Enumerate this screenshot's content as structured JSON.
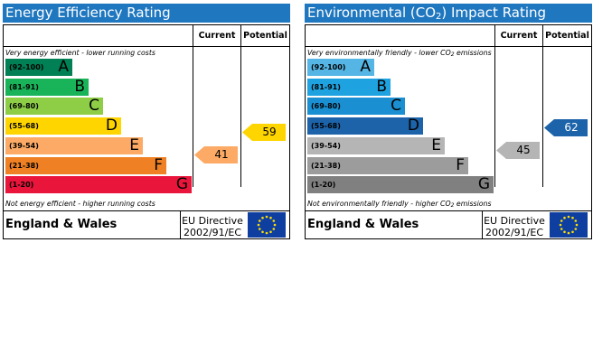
{
  "chart_data": [
    {
      "type": "bar",
      "title": "Energy Efficiency Rating",
      "columns": [
        "Current",
        "Potential"
      ],
      "top_note": "Very energy efficient - lower running costs",
      "bottom_note": "Not energy efficient - higher running costs",
      "bands": [
        {
          "range": "(92-100)",
          "letter": "A",
          "color": "#008054",
          "text_color": "#000000"
        },
        {
          "range": "(81-91)",
          "letter": "B",
          "color": "#19b459",
          "text_color": "#000000"
        },
        {
          "range": "(69-80)",
          "letter": "C",
          "color": "#8dce46",
          "text_color": "#000000"
        },
        {
          "range": "(55-68)",
          "letter": "D",
          "color": "#ffd500",
          "text_color": "#000000"
        },
        {
          "range": "(39-54)",
          "letter": "E",
          "color": "#fcaa65",
          "text_color": "#000000"
        },
        {
          "range": "(21-38)",
          "letter": "F",
          "color": "#ef8023",
          "text_color": "#000000"
        },
        {
          "range": "(1-20)",
          "letter": "G",
          "color": "#e9153b",
          "text_color": "#000000"
        }
      ],
      "current": {
        "value": 41,
        "band": "E",
        "color": "#fcaa65"
      },
      "potential": {
        "value": 59,
        "band": "D",
        "color": "#ffd500"
      },
      "footer": {
        "region": "England & Wales",
        "directive_line1": "EU Directive",
        "directive_line2": "2002/91/EC"
      }
    },
    {
      "type": "bar",
      "title_pre": "Environmental (CO",
      "title_sub": "2",
      "title_post": ") Impact Rating",
      "columns": [
        "Current",
        "Potential"
      ],
      "top_note_pre": "Very environmentally friendly - lower CO",
      "top_note_sub": "2",
      "top_note_post": " emissions",
      "bottom_note_pre": "Not environmentally friendly - higher CO",
      "bottom_note_sub": "2",
      "bottom_note_post": " emissions",
      "bands": [
        {
          "range": "(92-100)",
          "letter": "A",
          "color": "#55b5e5",
          "text_color": "#000000"
        },
        {
          "range": "(81-91)",
          "letter": "B",
          "color": "#1fa2e0",
          "text_color": "#000000"
        },
        {
          "range": "(69-80)",
          "letter": "C",
          "color": "#1a8fd1",
          "text_color": "#000000"
        },
        {
          "range": "(55-68)",
          "letter": "D",
          "color": "#1c63a9",
          "text_color": "#000000"
        },
        {
          "range": "(39-54)",
          "letter": "E",
          "color": "#b5b5b5",
          "text_color": "#000000"
        },
        {
          "range": "(21-38)",
          "letter": "F",
          "color": "#9c9c9c",
          "text_color": "#000000"
        },
        {
          "range": "(1-20)",
          "letter": "G",
          "color": "#808080",
          "text_color": "#000000"
        }
      ],
      "current": {
        "value": 45,
        "band": "E",
        "color": "#b5b5b5"
      },
      "potential": {
        "value": 62,
        "band": "D",
        "color": "#1c63a9"
      },
      "footer": {
        "region": "England & Wales",
        "directive_line1": "EU Directive",
        "directive_line2": "2002/91/EC"
      }
    }
  ]
}
